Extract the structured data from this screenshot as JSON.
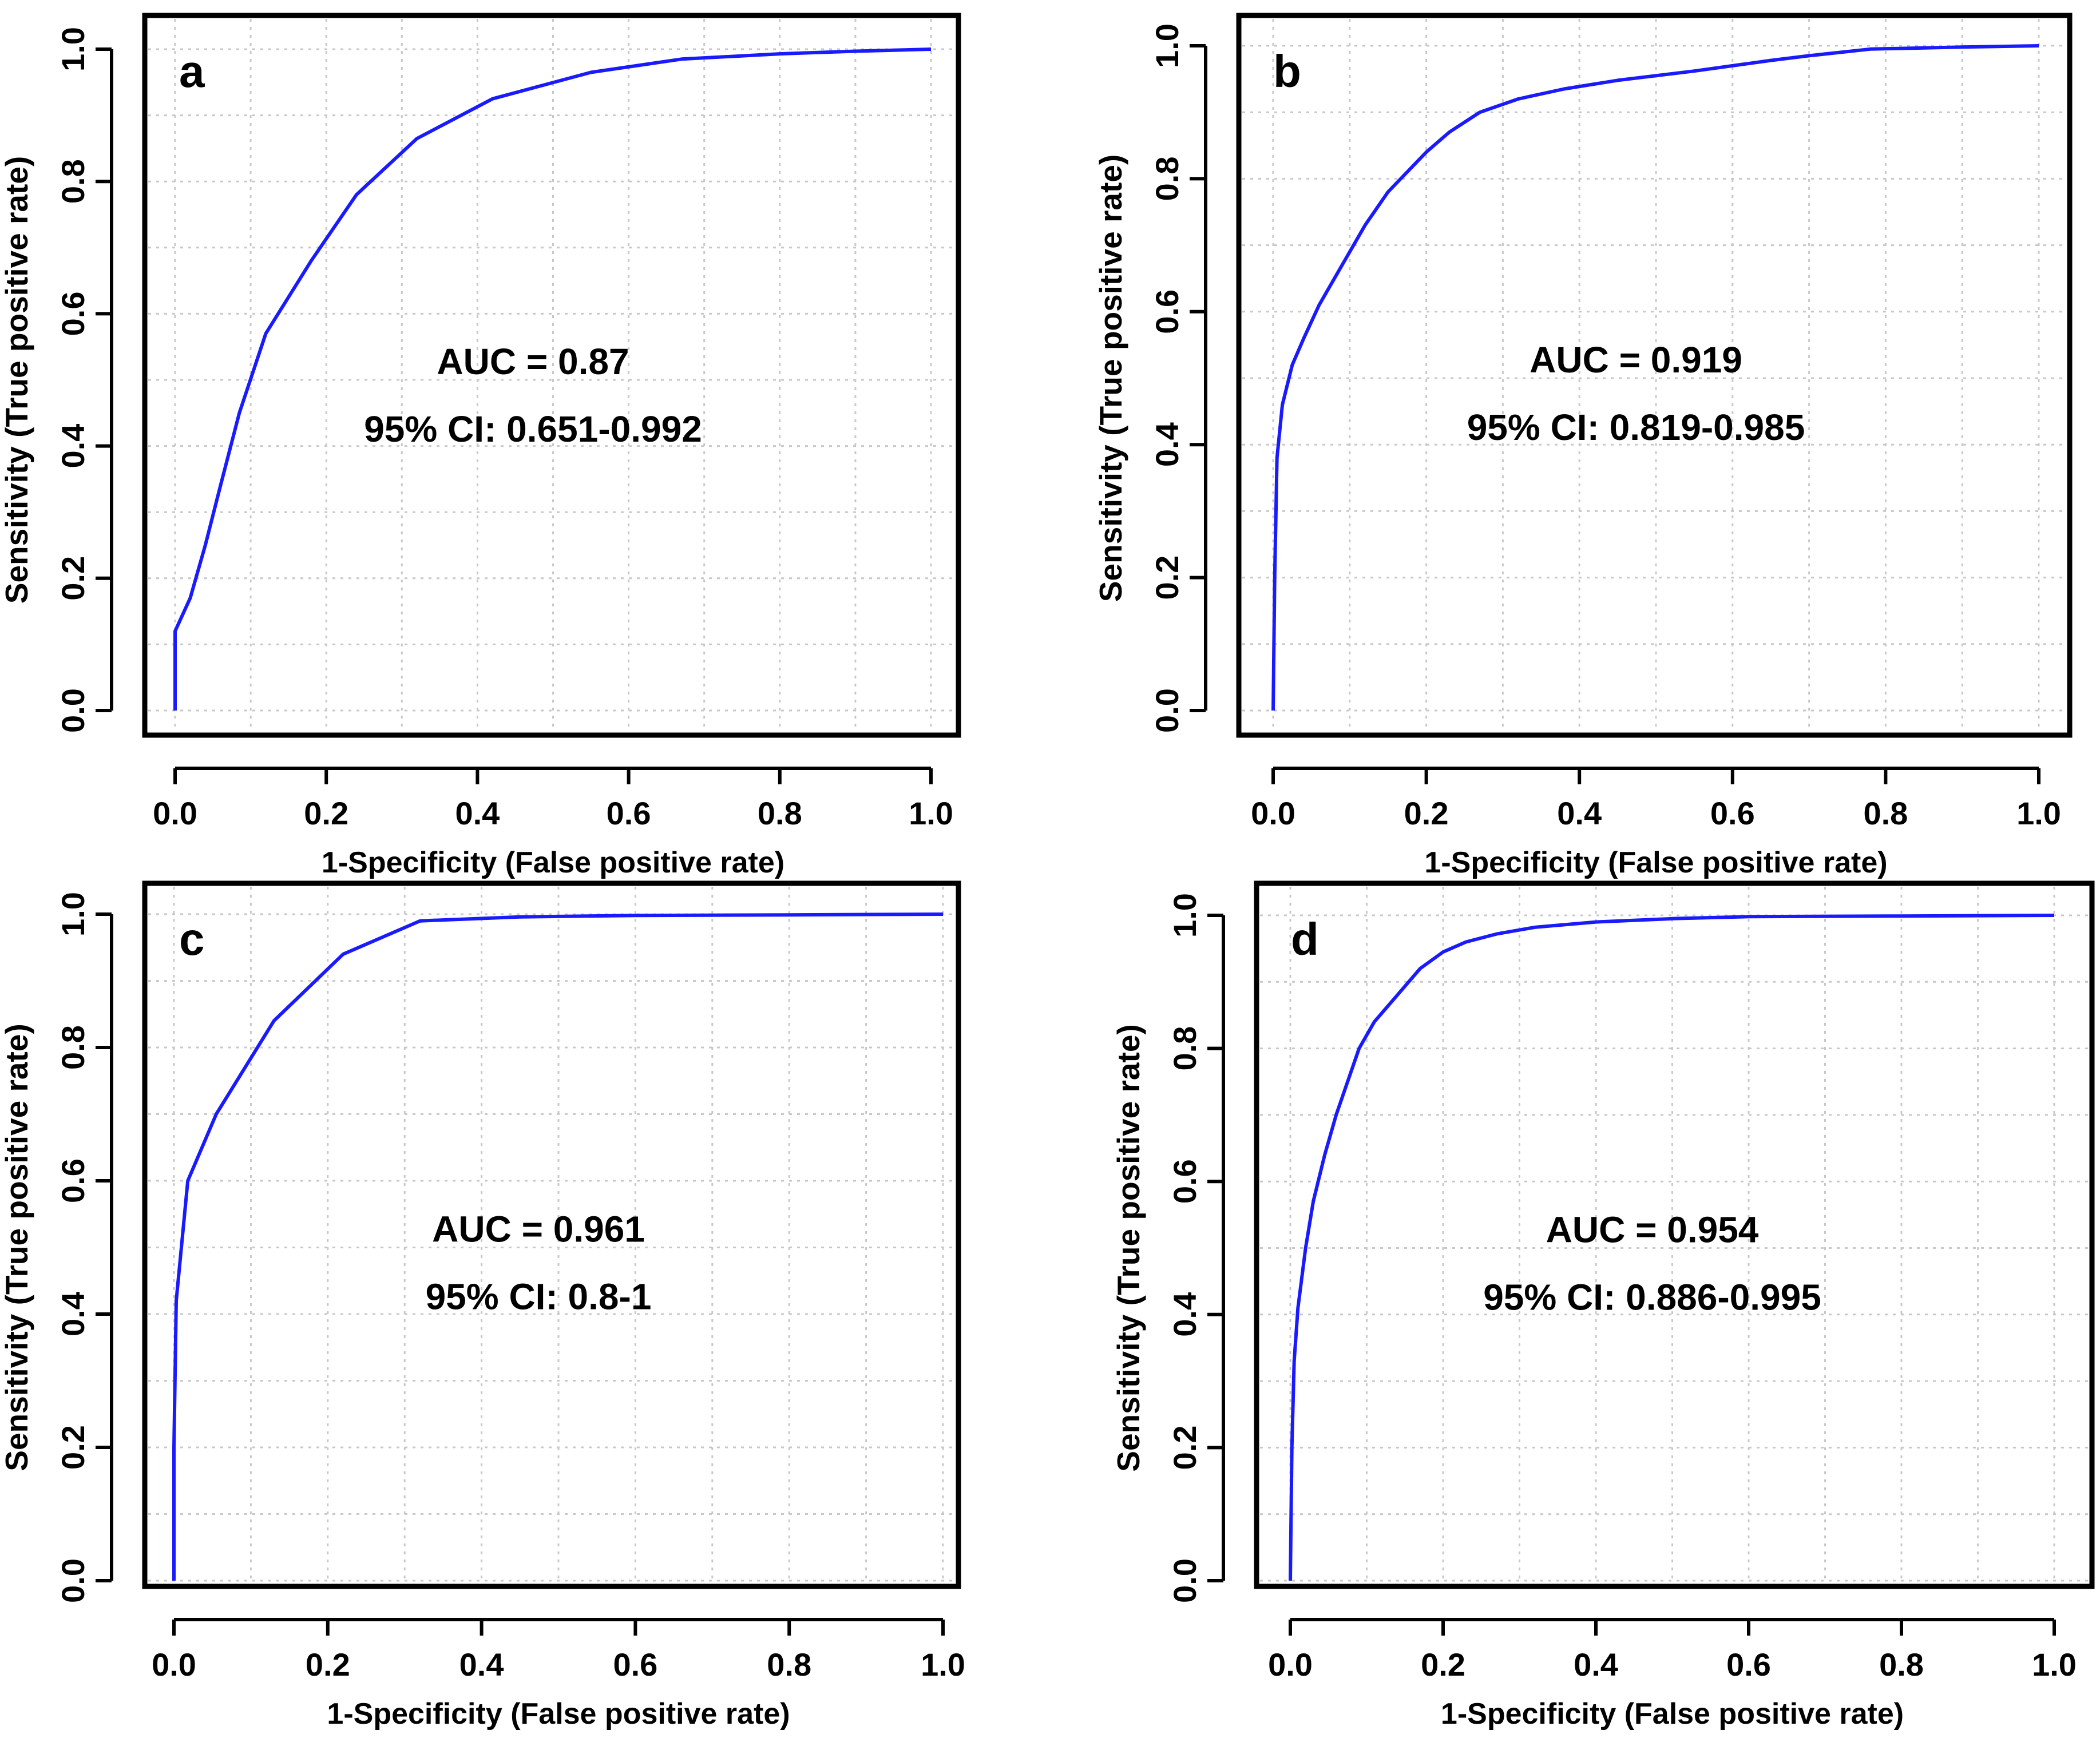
{
  "colors": {
    "curve": "#1a1aff",
    "frame": "#000000",
    "grid": "#c8c8c8",
    "background": "#ffffff"
  },
  "chart_data": [
    {
      "type": "line",
      "panel": "a",
      "xlabel": "1-Specificity (False positive rate)",
      "ylabel": "Sensitivity (True positive rate)",
      "xlim": [
        0,
        1
      ],
      "ylim": [
        0,
        1
      ],
      "xticks": [
        "0.0",
        "0.2",
        "0.4",
        "0.6",
        "0.8",
        "1.0"
      ],
      "yticks": [
        "0.0",
        "0.2",
        "0.4",
        "0.6",
        "0.8",
        "1.0"
      ],
      "grid": true,
      "auc_label": "AUC = 0.87",
      "ci_label": "95% CI: 0.651-0.992",
      "series": [
        {
          "name": "ROC",
          "x": [
            0,
            0,
            0.02,
            0.04,
            0.06,
            0.085,
            0.12,
            0.18,
            0.24,
            0.32,
            0.42,
            0.55,
            0.67,
            0.8,
            0.9,
            1.0
          ],
          "y": [
            0,
            0.12,
            0.17,
            0.25,
            0.34,
            0.45,
            0.57,
            0.68,
            0.78,
            0.865,
            0.925,
            0.965,
            0.985,
            0.993,
            0.997,
            1.0
          ]
        }
      ]
    },
    {
      "type": "line",
      "panel": "b",
      "xlabel": "1-Specificity (False positive rate)",
      "ylabel": "Sensitivity (True positive rate)",
      "xlim": [
        0,
        1
      ],
      "ylim": [
        0,
        1
      ],
      "xticks": [
        "0.0",
        "0.2",
        "0.4",
        "0.6",
        "0.8",
        "1.0"
      ],
      "yticks": [
        "0.0",
        "0.2",
        "0.4",
        "0.6",
        "0.8",
        "1.0"
      ],
      "grid": true,
      "auc_label": "AUC = 0.919",
      "ci_label": "95% CI: 0.819-0.985",
      "series": [
        {
          "name": "ROC",
          "x": [
            0,
            0.002,
            0.005,
            0.012,
            0.025,
            0.04,
            0.06,
            0.09,
            0.12,
            0.15,
            0.2,
            0.23,
            0.27,
            0.32,
            0.38,
            0.45,
            0.55,
            0.65,
            0.7,
            0.78,
            0.9,
            1.0
          ],
          "y": [
            0,
            0.2,
            0.38,
            0.46,
            0.52,
            0.56,
            0.61,
            0.67,
            0.73,
            0.78,
            0.84,
            0.87,
            0.9,
            0.92,
            0.935,
            0.948,
            0.962,
            0.978,
            0.985,
            0.995,
            0.998,
            1.0
          ]
        }
      ]
    },
    {
      "type": "line",
      "panel": "c",
      "xlabel": "1-Specificity (False positive rate)",
      "ylabel": "Sensitivity (True positive rate)",
      "xlim": [
        0,
        1
      ],
      "ylim": [
        0,
        1
      ],
      "xticks": [
        "0.0",
        "0.2",
        "0.4",
        "0.6",
        "0.8",
        "1.0"
      ],
      "yticks": [
        "0.0",
        "0.2",
        "0.4",
        "0.6",
        "0.8",
        "1.0"
      ],
      "grid": true,
      "auc_label": "AUC = 0.961",
      "ci_label": "95% CI: 0.8-1",
      "series": [
        {
          "name": "ROC",
          "x": [
            0,
            0,
            0.003,
            0.018,
            0.055,
            0.13,
            0.22,
            0.32,
            0.45,
            0.6,
            0.8,
            1.0
          ],
          "y": [
            0,
            0.2,
            0.42,
            0.6,
            0.7,
            0.84,
            0.94,
            0.99,
            0.996,
            0.998,
            0.999,
            1.0
          ]
        }
      ]
    },
    {
      "type": "line",
      "panel": "d",
      "xlabel": "1-Specificity (False positive rate)",
      "ylabel": "Sensitivity (True positive rate)",
      "xlim": [
        0,
        1
      ],
      "ylim": [
        0,
        1
      ],
      "xticks": [
        "0.0",
        "0.2",
        "0.4",
        "0.6",
        "0.8",
        "1.0"
      ],
      "yticks": [
        "0.0",
        "0.2",
        "0.4",
        "0.6",
        "0.8",
        "1.0"
      ],
      "grid": true,
      "auc_label": "AUC = 0.954",
      "ci_label": "95% CI: 0.886-0.995",
      "series": [
        {
          "name": "ROC",
          "x": [
            0,
            0.002,
            0.005,
            0.01,
            0.02,
            0.03,
            0.045,
            0.06,
            0.075,
            0.09,
            0.11,
            0.14,
            0.17,
            0.2,
            0.23,
            0.27,
            0.32,
            0.4,
            0.5,
            0.6,
            0.8,
            1.0
          ],
          "y": [
            0,
            0.2,
            0.33,
            0.41,
            0.5,
            0.57,
            0.64,
            0.7,
            0.75,
            0.8,
            0.84,
            0.88,
            0.92,
            0.945,
            0.96,
            0.972,
            0.982,
            0.99,
            0.995,
            0.998,
            0.999,
            1.0
          ]
        }
      ]
    }
  ]
}
